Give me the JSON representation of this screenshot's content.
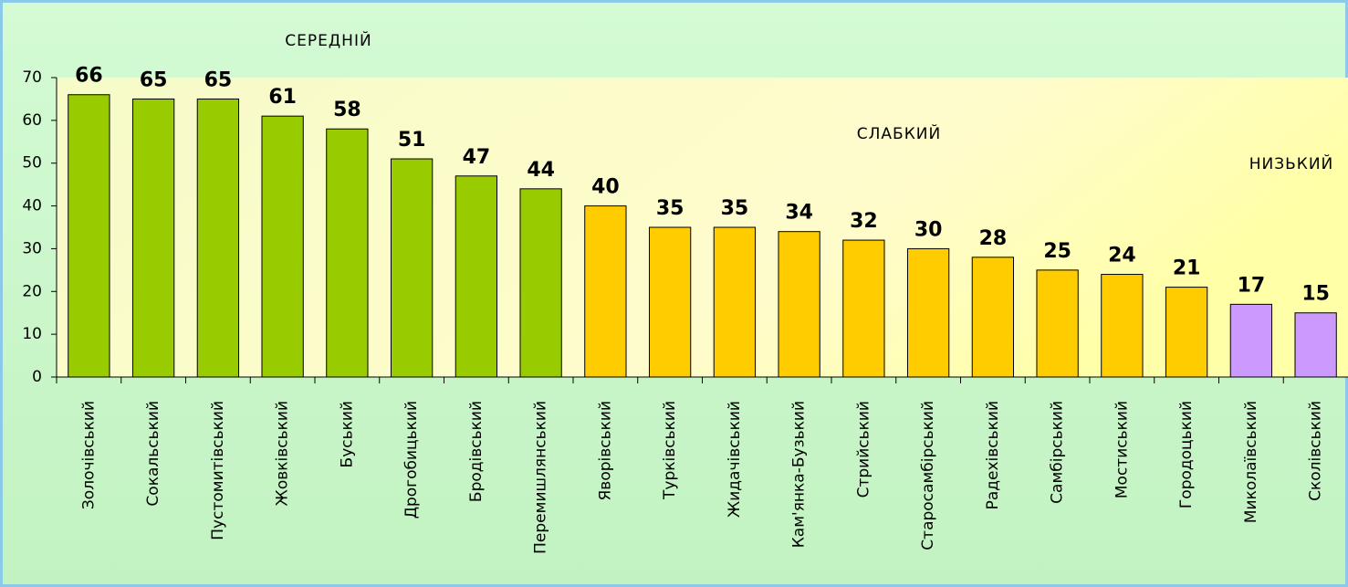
{
  "chart_data": {
    "type": "bar",
    "annotations": [
      "СЕРЕДНІЙ",
      "СЛАБКИЙ",
      "НИЗЬКИЙ"
    ],
    "categories": [
      "Золочівський",
      "Сокальський",
      "Пустомитівський",
      "Жовківський",
      "Буський",
      "Дрогобицький",
      "Бродівський",
      "Перемишлянський",
      "Яворівський",
      "Турківський",
      "Жидачівський",
      "Кам'янка-Бузький",
      "Стрийський",
      "Старосамбірський",
      "Радехівський",
      "Самбірський",
      "Мостиський",
      "Городоцький",
      "Миколаївський",
      "Сколівський"
    ],
    "values": [
      66,
      65,
      65,
      61,
      58,
      51,
      47,
      44,
      40,
      35,
      35,
      34,
      32,
      30,
      28,
      25,
      24,
      21,
      17,
      15
    ],
    "colors": [
      "#99cc00",
      "#99cc00",
      "#99cc00",
      "#99cc00",
      "#99cc00",
      "#99cc00",
      "#99cc00",
      "#99cc00",
      "#ffcc00",
      "#ffcc00",
      "#ffcc00",
      "#ffcc00",
      "#ffcc00",
      "#ffcc00",
      "#ffcc00",
      "#ffcc00",
      "#ffcc00",
      "#ffcc00",
      "#cc99ff",
      "#cc99ff"
    ],
    "ylim": [
      0,
      70
    ],
    "yticks": [
      0,
      10,
      20,
      30,
      40,
      50,
      60,
      70
    ]
  }
}
